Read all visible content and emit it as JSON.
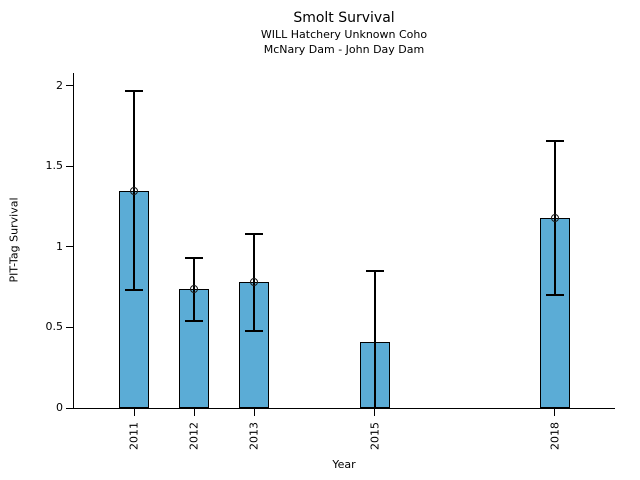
{
  "chart_data": {
    "type": "bar",
    "title": "Smolt Survival",
    "subtitle_lines": [
      "WILL Hatchery Unknown Coho",
      "McNary Dam - John Day Dam"
    ],
    "xlabel": "Year",
    "ylabel": "PIT-Tag Survival",
    "categories": [
      "2011",
      "2012",
      "2013",
      "2015",
      "2018"
    ],
    "x": [
      2011,
      2012,
      2013,
      2015,
      2018
    ],
    "values": [
      1.35,
      0.74,
      0.78,
      0.41,
      1.18
    ],
    "error_low": [
      0.73,
      0.54,
      0.48,
      0,
      0.7
    ],
    "error_high": [
      1.97,
      0.93,
      1.08,
      0.85,
      1.66
    ],
    "point_markers": [
      true,
      true,
      true,
      false,
      true
    ],
    "y_ticks": [
      0,
      0.5,
      1,
      1.5,
      2
    ],
    "y_tick_labels": [
      "0",
      "0.5",
      "1",
      "1.5",
      "2"
    ],
    "ylim": [
      0,
      2.08
    ],
    "xlim": [
      2010,
      2019
    ],
    "bar_width_years": 0.5,
    "bar_color": "#5BACD6",
    "bar_edge_color": "#000000",
    "error_color": "#000000",
    "grid": false,
    "legend": null
  }
}
